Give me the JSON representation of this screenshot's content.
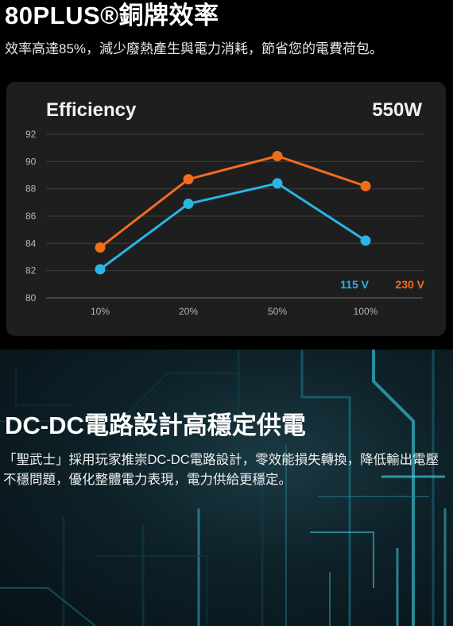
{
  "header": {
    "title": "80PLUS®銅牌效率",
    "subtitle": "效率高達85%，減少廢熱產生與電力消耗，節省您的電費荷包。"
  },
  "card": {
    "title": "Efficiency",
    "wattage": "550W"
  },
  "chart_data": {
    "type": "line",
    "title": "Efficiency",
    "categories": [
      "10%",
      "20%",
      "50%",
      "100%"
    ],
    "yticks": [
      "92",
      "90",
      "88",
      "86",
      "84",
      "82",
      "80"
    ],
    "ylim": [
      80,
      92
    ],
    "grid": true,
    "legend_position": "bottom-right",
    "series": [
      {
        "name": "115 V",
        "color": "#29b6e6",
        "values": [
          82.1,
          86.9,
          88.4,
          84.2
        ]
      },
      {
        "name": "230 V",
        "color": "#f26d1d",
        "values": [
          83.7,
          88.7,
          90.4,
          88.2
        ]
      }
    ]
  },
  "section2": {
    "title": "DC-DC電路設計高穩定供電",
    "paragraph": "「聖武士」採用玩家推崇DC-DC電路設計，零效能損失轉換，降低輸出電壓不穩問題，優化整體電力表現，電力供給更穩定。"
  },
  "colors": {
    "background": "#000000",
    "card": "#1e1e1e",
    "accent_blue": "#29b6e6",
    "accent_orange": "#f26d1d"
  }
}
